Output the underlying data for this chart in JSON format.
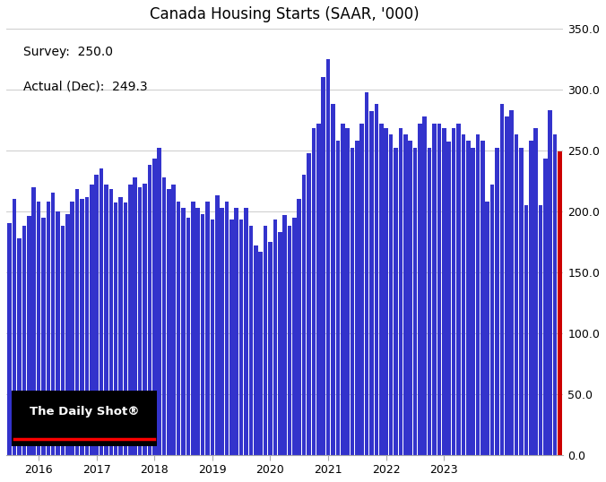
{
  "title": "Canada Housing Starts (SAAR, '000)",
  "survey_label": "Survey:  250.0",
  "actual_label": "Actual (Dec):  249.3",
  "survey_value": 250.0,
  "actual_value": 249.3,
  "ylim": [
    0,
    350
  ],
  "yticks": [
    0,
    50,
    100,
    150,
    200,
    250,
    300,
    350
  ],
  "bar_color": "#3333cc",
  "last_bar_color": "#cc0000",
  "background_color": "#ffffff",
  "watermark_text": "The Daily Shot®",
  "values": [
    190,
    210,
    178,
    188,
    196,
    220,
    208,
    195,
    208,
    215,
    200,
    188,
    198,
    208,
    218,
    210,
    212,
    222,
    230,
    235,
    222,
    218,
    207,
    212,
    207,
    222,
    228,
    220,
    223,
    238,
    243,
    252,
    228,
    218,
    222,
    208,
    203,
    195,
    208,
    203,
    198,
    208,
    193,
    213,
    203,
    208,
    193,
    203,
    193,
    203,
    188,
    172,
    167,
    188,
    175,
    193,
    183,
    197,
    188,
    195,
    210,
    230,
    248,
    268,
    272,
    310,
    325,
    288,
    258,
    272,
    268,
    252,
    258,
    272,
    298,
    282,
    288,
    272,
    268,
    263,
    252,
    268,
    263,
    258,
    252,
    272,
    278,
    252,
    272,
    272,
    268,
    257,
    268,
    272,
    263,
    258,
    252,
    263,
    258,
    208,
    222,
    252,
    288,
    278,
    283,
    263,
    252,
    205,
    258,
    268,
    205,
    243,
    283,
    263,
    249.3
  ],
  "x_tick_labels": [
    "2016",
    "2017",
    "2018",
    "2019",
    "2020",
    "2021",
    "2022",
    "2023"
  ],
  "x_tick_positions": [
    6,
    18,
    30,
    42,
    54,
    66,
    78,
    90
  ]
}
